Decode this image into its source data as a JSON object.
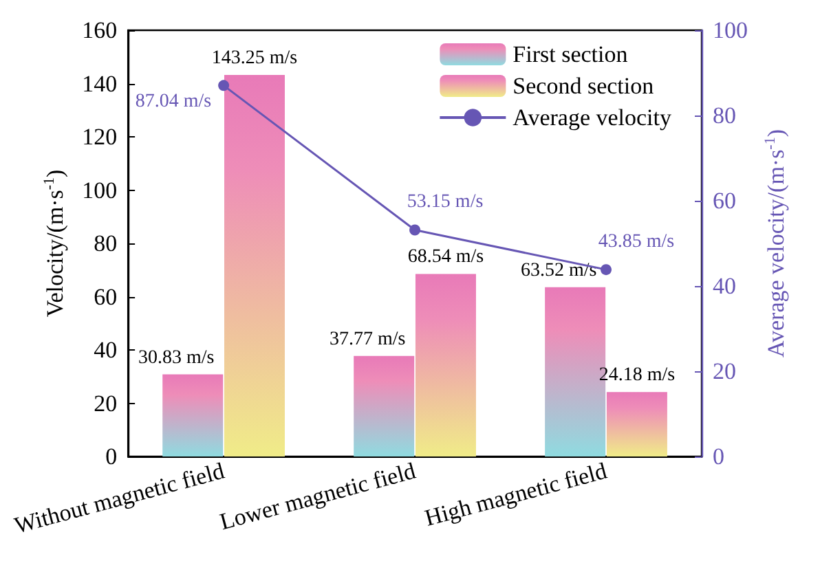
{
  "chart_data": {
    "type": "bar",
    "categories": [
      "Without magnetic field",
      "Lower magnetic field",
      "High magnetic field"
    ],
    "ylabel": "Velocity/(m·s$^{-1}$)",
    "y2label": "Average velocity/(m·s$^{-1}$)",
    "ylim": [
      0,
      160
    ],
    "yticks": [
      0,
      20,
      40,
      60,
      80,
      100,
      120,
      140,
      160
    ],
    "y2lim": [
      0,
      100
    ],
    "y2ticks": [
      0,
      20,
      40,
      60,
      80,
      100
    ],
    "grid": false,
    "legend": "top right",
    "series": [
      {
        "name": "First section",
        "color": "#8fdbe0",
        "values": [
          30.83,
          37.77,
          63.52
        ],
        "value_labels": [
          "30.83 m/s",
          "37.77 m/s",
          "63.52 m/s"
        ]
      },
      {
        "name": "Second section",
        "color": "#f0ec88",
        "values": [
          143.25,
          68.54,
          24.18
        ],
        "value_labels": [
          "143.25 m/s",
          "68.54 m/s",
          "24.18 m/s"
        ]
      },
      {
        "name": "Average velocity",
        "type": "line",
        "axis": "y2",
        "color": "#6656b4",
        "marker": "circle",
        "values": [
          87.04,
          53.15,
          43.85
        ],
        "value_labels": [
          "87.04 m/s",
          "53.15 m/s",
          "43.85 m/s"
        ]
      }
    ]
  }
}
